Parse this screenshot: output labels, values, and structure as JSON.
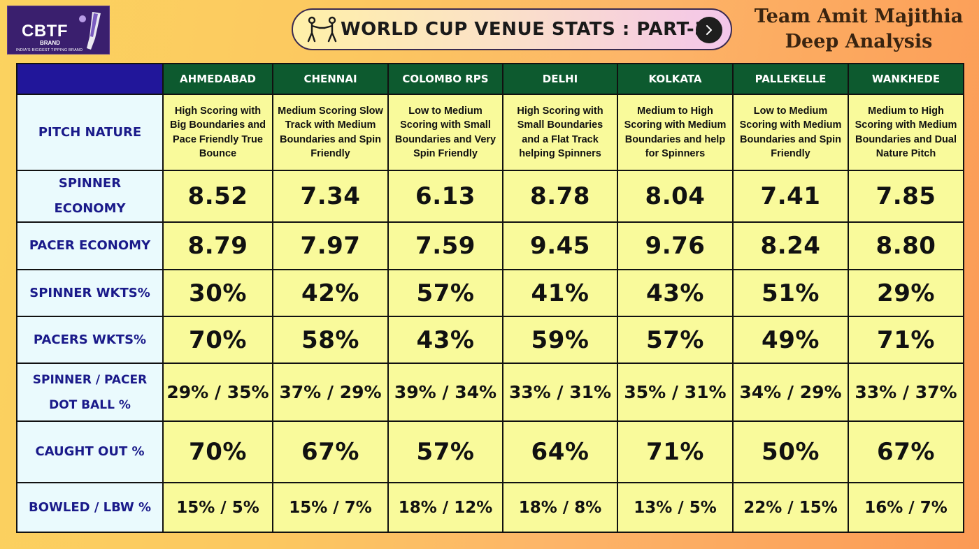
{
  "logo": {
    "brand": "CBTF",
    "brand_sub": "BRAND",
    "tagline": "INDIA'S BIGGEST TIPPING BRAND"
  },
  "title": "WORLD CUP VENUE STATS : PART-3",
  "team": {
    "line1": "Team Amit Majithia",
    "line2": "Deep Analysis"
  },
  "icons": {
    "figures": "people-icon",
    "next": "chevron-right-icon",
    "bat": "cricket-bat-icon"
  },
  "colors": {
    "header_venue_bg": "#0d5a2f",
    "header_corner_bg": "#21169a",
    "label_bg": "#eafafd",
    "label_text": "#1a1a8a",
    "cell_bg": "#f9fa9b"
  },
  "venues": [
    "AHMEDABAD",
    "CHENNAI",
    "COLOMBO RPS",
    "DELHI",
    "KOLKATA",
    "PALLEKELLE",
    "WANKHEDE"
  ],
  "rows": [
    {
      "label": "PITCH NATURE",
      "values": [
        "High Scoring with Big Boundaries and Pace Friendly True Bounce",
        "Medium Scoring Slow Track with Medium Boundaries and Spin Friendly",
        "Low to Medium Scoring with Small Boundaries and Very Spin Friendly",
        "High Scoring with Small Boundaries and a Flat Track helping Spinners",
        "Medium to High Scoring with Medium Boundaries and help for Spinners",
        "Low to Medium Scoring with Medium Boundaries and Spin Friendly",
        "Medium to High Scoring with Medium Boundaries and Dual Nature Pitch"
      ]
    },
    {
      "label": "SPINNER ECONOMY",
      "values": [
        "8.52",
        "7.34",
        "6.13",
        "8.78",
        "8.04",
        "7.41",
        "7.85"
      ]
    },
    {
      "label": "PACER ECONOMY",
      "values": [
        "8.79",
        "7.97",
        "7.59",
        "9.45",
        "9.76",
        "8.24",
        "8.80"
      ]
    },
    {
      "label": "SPINNER WKTS%",
      "values": [
        "30%",
        "42%",
        "57%",
        "41%",
        "43%",
        "51%",
        "29%"
      ]
    },
    {
      "label": "PACERS WKTS%",
      "values": [
        "70%",
        "58%",
        "43%",
        "59%",
        "57%",
        "49%",
        "71%"
      ]
    },
    {
      "label": "SPINNER / PACER DOT BALL %",
      "values": [
        "29% / 35%",
        "37% / 29%",
        "39% / 34%",
        "33% / 31%",
        "35% / 31%",
        "34% / 29%",
        "33% / 37%"
      ]
    },
    {
      "label": "CAUGHT OUT %",
      "values": [
        "70%",
        "67%",
        "57%",
        "64%",
        "71%",
        "50%",
        "67%"
      ]
    },
    {
      "label": "BOWLED / LBW %",
      "values": [
        "15% / 5%",
        "15% / 7%",
        "18% / 12%",
        "18% / 8%",
        "13% / 5%",
        "22% / 15%",
        "16% / 7%"
      ]
    }
  ]
}
